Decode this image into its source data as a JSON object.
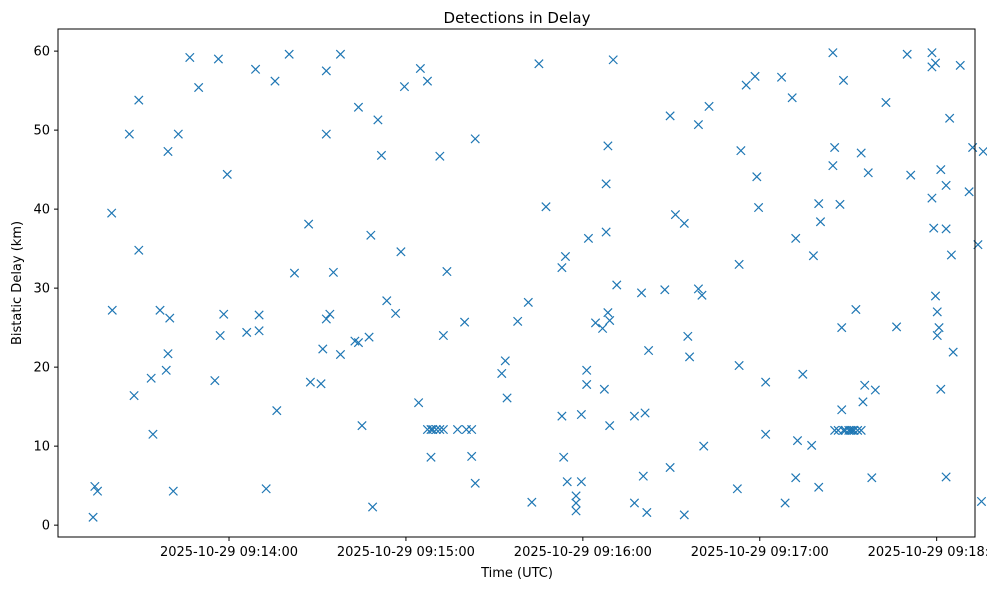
{
  "chart_data": {
    "type": "scatter",
    "title": "Detections in Delay",
    "xlabel": "Time (UTC)",
    "ylabel": "Bistatic Delay (km)",
    "x_unit": "seconds",
    "x_reference_label": "2025-10-29 09:14:00",
    "xlim": [
      -58,
      253
    ],
    "ylim": [
      -1.5,
      62.8
    ],
    "x_ticks": [
      {
        "value": 0,
        "label": "2025-10-29 09:14:00"
      },
      {
        "value": 60,
        "label": "2025-10-29 09:15:00"
      },
      {
        "value": 120,
        "label": "2025-10-29 09:16:00"
      },
      {
        "value": 180,
        "label": "2025-10-29 09:17:00"
      },
      {
        "value": 240,
        "label": "2025-10-29 09:18:00"
      }
    ],
    "y_ticks": [
      0,
      10,
      20,
      30,
      40,
      50,
      60
    ],
    "marker": "x",
    "color": "#1f77b4",
    "grid": false,
    "points": [
      [
        -46.1,
        1.0
      ],
      [
        -45.5,
        4.9
      ],
      [
        -44.6,
        4.3
      ],
      [
        -39.8,
        39.5
      ],
      [
        -39.6,
        27.2
      ],
      [
        -33.8,
        49.5
      ],
      [
        -32.2,
        16.4
      ],
      [
        -30.6,
        34.8
      ],
      [
        -30.6,
        53.8
      ],
      [
        -26.4,
        18.6
      ],
      [
        -25.8,
        11.5
      ],
      [
        -23.4,
        27.2
      ],
      [
        -21.3,
        19.6
      ],
      [
        -20.7,
        21.7
      ],
      [
        -20.7,
        47.3
      ],
      [
        -20.1,
        26.2
      ],
      [
        -18.9,
        4.3
      ],
      [
        -17.2,
        49.5
      ],
      [
        -13.3,
        59.2
      ],
      [
        -10.3,
        55.4
      ],
      [
        -4.8,
        18.3
      ],
      [
        -3.6,
        59.0
      ],
      [
        -3.0,
        24.0
      ],
      [
        -1.8,
        26.7
      ],
      [
        -0.6,
        44.4
      ],
      [
        6.0,
        24.4
      ],
      [
        9.0,
        57.7
      ],
      [
        10.2,
        26.6
      ],
      [
        10.2,
        24.6
      ],
      [
        12.6,
        4.6
      ],
      [
        15.6,
        56.2
      ],
      [
        16.2,
        14.5
      ],
      [
        20.4,
        59.6
      ],
      [
        22.2,
        31.9
      ],
      [
        27.0,
        38.1
      ],
      [
        27.6,
        18.1
      ],
      [
        31.2,
        17.9
      ],
      [
        31.8,
        22.3
      ],
      [
        33.0,
        26.1
      ],
      [
        33.0,
        57.5
      ],
      [
        33.0,
        49.5
      ],
      [
        34.2,
        26.7
      ],
      [
        35.4,
        32.0
      ],
      [
        37.8,
        59.6
      ],
      [
        37.8,
        21.6
      ],
      [
        42.7,
        23.3
      ],
      [
        43.9,
        23.1
      ],
      [
        43.9,
        52.9
      ],
      [
        45.1,
        12.6
      ],
      [
        47.5,
        23.8
      ],
      [
        48.1,
        36.7
      ],
      [
        48.7,
        2.3
      ],
      [
        50.5,
        51.3
      ],
      [
        51.7,
        46.8
      ],
      [
        53.5,
        28.4
      ],
      [
        56.5,
        26.8
      ],
      [
        58.3,
        34.6
      ],
      [
        59.5,
        55.5
      ],
      [
        64.3,
        15.5
      ],
      [
        64.9,
        57.8
      ],
      [
        67.3,
        56.2
      ],
      [
        67.3,
        12.1
      ],
      [
        68.5,
        12.1
      ],
      [
        69.1,
        12.1
      ],
      [
        70.3,
        12.1
      ],
      [
        71.5,
        12.1
      ],
      [
        71.5,
        46.7
      ],
      [
        72.7,
        12.1
      ],
      [
        68.5,
        8.6
      ],
      [
        72.7,
        24.0
      ],
      [
        73.9,
        32.1
      ],
      [
        77.5,
        12.1
      ],
      [
        79.9,
        25.7
      ],
      [
        80.5,
        12.1
      ],
      [
        82.3,
        12.1
      ],
      [
        82.3,
        8.7
      ],
      [
        83.5,
        5.3
      ],
      [
        83.5,
        48.9
      ],
      [
        92.5,
        19.2
      ],
      [
        93.7,
        20.8
      ],
      [
        94.3,
        16.1
      ],
      [
        97.9,
        25.8
      ],
      [
        101.5,
        28.2
      ],
      [
        102.7,
        2.9
      ],
      [
        105.1,
        58.4
      ],
      [
        107.5,
        40.3
      ],
      [
        112.9,
        13.8
      ],
      [
        112.9,
        32.6
      ],
      [
        113.5,
        8.6
      ],
      [
        114.1,
        34.0
      ],
      [
        114.7,
        5.5
      ],
      [
        117.7,
        3.7
      ],
      [
        117.7,
        2.8
      ],
      [
        117.7,
        1.8
      ],
      [
        119.5,
        14.0
      ],
      [
        119.5,
        5.5
      ],
      [
        121.3,
        19.6
      ],
      [
        121.3,
        17.8
      ],
      [
        121.9,
        36.3
      ],
      [
        124.3,
        25.6
      ],
      [
        127.3,
        17.2
      ],
      [
        126.7,
        24.9
      ],
      [
        127.9,
        43.2
      ],
      [
        127.9,
        37.1
      ],
      [
        128.5,
        48.0
      ],
      [
        128.5,
        26.9
      ],
      [
        129.1,
        12.6
      ],
      [
        129.1,
        25.9
      ],
      [
        130.3,
        58.9
      ],
      [
        131.5,
        30.4
      ],
      [
        137.5,
        13.8
      ],
      [
        137.5,
        2.8
      ],
      [
        139.9,
        29.4
      ],
      [
        140.5,
        6.2
      ],
      [
        141.1,
        14.2
      ],
      [
        141.7,
        1.6
      ],
      [
        142.3,
        22.1
      ],
      [
        147.8,
        29.8
      ],
      [
        149.6,
        7.3
      ],
      [
        149.6,
        51.8
      ],
      [
        151.4,
        39.3
      ],
      [
        154.4,
        38.2
      ],
      [
        154.4,
        1.3
      ],
      [
        155.6,
        23.9
      ],
      [
        156.2,
        21.3
      ],
      [
        159.2,
        50.7
      ],
      [
        159.2,
        29.9
      ],
      [
        160.4,
        29.1
      ],
      [
        161.0,
        10.0
      ],
      [
        162.8,
        53.0
      ],
      [
        172.4,
        4.6
      ],
      [
        173.0,
        33.0
      ],
      [
        173.0,
        20.2
      ],
      [
        173.6,
        47.4
      ],
      [
        175.4,
        55.7
      ],
      [
        178.4,
        56.8
      ],
      [
        179.0,
        44.1
      ],
      [
        179.6,
        40.2
      ],
      [
        182.0,
        18.1
      ],
      [
        182.0,
        11.5
      ],
      [
        187.4,
        56.7
      ],
      [
        188.6,
        2.8
      ],
      [
        191.0,
        54.1
      ],
      [
        192.2,
        6.0
      ],
      [
        192.2,
        36.3
      ],
      [
        192.8,
        10.7
      ],
      [
        194.6,
        19.1
      ],
      [
        197.6,
        10.1
      ],
      [
        198.2,
        34.1
      ],
      [
        200.0,
        4.8
      ],
      [
        200.6,
        38.4
      ],
      [
        200.0,
        40.7
      ],
      [
        204.8,
        59.8
      ],
      [
        204.8,
        45.5
      ],
      [
        205.4,
        47.8
      ],
      [
        205.4,
        12.0
      ],
      [
        206.6,
        12.0
      ],
      [
        207.2,
        40.6
      ],
      [
        207.8,
        25.0
      ],
      [
        207.8,
        14.6
      ],
      [
        208.4,
        12.0
      ],
      [
        208.4,
        56.3
      ],
      [
        209.0,
        12.0
      ],
      [
        210.2,
        12.0
      ],
      [
        210.8,
        12.0
      ],
      [
        211.4,
        12.0
      ],
      [
        212.0,
        12.0
      ],
      [
        212.6,
        27.3
      ],
      [
        213.2,
        12.0
      ],
      [
        214.4,
        12.0
      ],
      [
        214.4,
        47.1
      ],
      [
        215.0,
        15.6
      ],
      [
        215.6,
        17.7
      ],
      [
        216.8,
        44.6
      ],
      [
        218.0,
        6.0
      ],
      [
        219.2,
        17.1
      ],
      [
        222.8,
        53.5
      ],
      [
        226.4,
        25.1
      ],
      [
        230.0,
        59.6
      ],
      [
        231.2,
        44.3
      ],
      [
        238.4,
        59.8
      ],
      [
        238.4,
        58.0
      ],
      [
        238.4,
        41.4
      ],
      [
        239.0,
        37.6
      ],
      [
        239.6,
        58.5
      ],
      [
        239.6,
        29.0
      ],
      [
        240.2,
        27.0
      ],
      [
        240.2,
        24.0
      ],
      [
        240.8,
        25.0
      ],
      [
        241.4,
        17.2
      ],
      [
        241.4,
        45.0
      ],
      [
        243.2,
        6.1
      ],
      [
        243.2,
        37.5
      ],
      [
        243.2,
        43.0
      ],
      [
        244.4,
        51.5
      ],
      [
        245.0,
        34.2
      ],
      [
        245.6,
        21.9
      ],
      [
        248.0,
        58.2
      ],
      [
        251.0,
        42.2
      ],
      [
        252.2,
        47.8
      ],
      [
        254.0,
        35.5
      ],
      [
        255.2,
        3.0
      ],
      [
        255.8,
        47.3
      ]
    ]
  }
}
